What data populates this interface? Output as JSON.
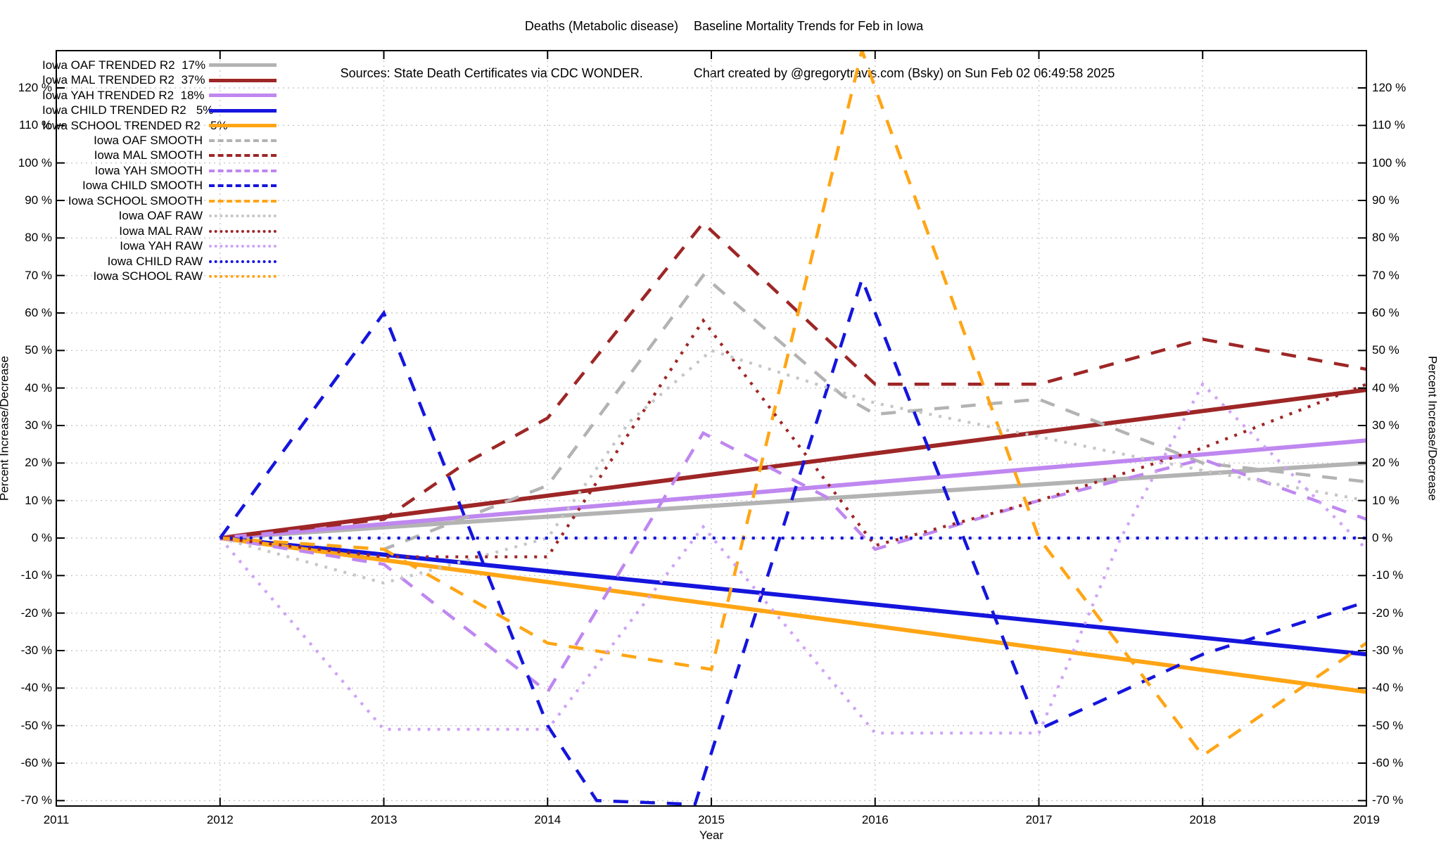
{
  "title": {
    "main_left": "Deaths (Metabolic disease)",
    "main_right": "Baseline Mortality Trends for Feb in Iowa",
    "sources": "Sources: State Death Certificates via CDC WONDER.",
    "credit": "Chart created by @gregorytravis.com (Bsky) on Sun Feb 02 06:49:58 2025"
  },
  "axes": {
    "xlabel": "Year",
    "ylabel_left": "Percent Increase/Decrease",
    "ylabel_right": "Percent Increase/Decrease",
    "ytick_suffix": " %"
  },
  "chart_data": {
    "type": "line",
    "title": "Deaths (Metabolic disease)  Baseline Mortality Trends for Feb in Iowa",
    "xlabel": "Year",
    "ylabel": "Percent Increase/Decrease",
    "xlim": [
      2011,
      2019
    ],
    "ylim": [
      -71.6,
      130
    ],
    "grid": true,
    "legend_position": "top-left",
    "xticks": [
      2011,
      2012,
      2013,
      2014,
      2015,
      2016,
      2017,
      2018,
      2019
    ],
    "yticks": [
      -70,
      -60,
      -50,
      -40,
      -30,
      -20,
      -10,
      0,
      10,
      20,
      30,
      40,
      50,
      60,
      70,
      80,
      90,
      100,
      110,
      120
    ],
    "series": [
      {
        "name": "Iowa OAF TRENDED R2  17%",
        "style": "solid",
        "color": "#b3b3b3",
        "points": [
          [
            2012,
            0
          ],
          [
            2019,
            20
          ]
        ]
      },
      {
        "name": "Iowa MAL TRENDED R2  37%",
        "style": "solid",
        "color": "#9e2626",
        "points": [
          [
            2012,
            0
          ],
          [
            2019,
            39.5
          ]
        ]
      },
      {
        "name": "Iowa YAH TRENDED R2  18%",
        "style": "solid",
        "color": "#bf87f0",
        "points": [
          [
            2012,
            0
          ],
          [
            2019,
            26
          ]
        ]
      },
      {
        "name": "Iowa CHILD TRENDED R2   5%",
        "style": "solid",
        "color": "#1515dd",
        "points": [
          [
            2012,
            0
          ],
          [
            2019,
            -31
          ]
        ]
      },
      {
        "name": "Iowa SCHOOL TRENDED R2   5%",
        "style": "solid",
        "color": "#ffa515",
        "points": [
          [
            2012,
            0
          ],
          [
            2019,
            -41
          ]
        ]
      },
      {
        "name": "Iowa OAF SMOOTH",
        "style": "dashed",
        "color": "#b3b3b3",
        "points": [
          [
            2012,
            0
          ],
          [
            2013,
            -3
          ],
          [
            2014,
            14
          ],
          [
            2014.95,
            70
          ],
          [
            2015.8,
            38
          ],
          [
            2016,
            33
          ],
          [
            2017,
            37
          ],
          [
            2018,
            20
          ],
          [
            2019,
            15
          ]
        ]
      },
      {
        "name": "Iowa MAL SMOOTH",
        "style": "dashed",
        "color": "#9e2626",
        "points": [
          [
            2012,
            0
          ],
          [
            2013,
            5
          ],
          [
            2013.5,
            20
          ],
          [
            2014,
            32
          ],
          [
            2014.95,
            84
          ],
          [
            2016,
            41
          ],
          [
            2017,
            41
          ],
          [
            2018,
            53
          ],
          [
            2019,
            45
          ]
        ]
      },
      {
        "name": "Iowa YAH SMOOTH",
        "style": "dashed",
        "color": "#bf87f0",
        "points": [
          [
            2012,
            0
          ],
          [
            2013,
            -7
          ],
          [
            2014,
            -41
          ],
          [
            2014.95,
            28
          ],
          [
            2015.7,
            11
          ],
          [
            2016,
            -3
          ],
          [
            2017,
            10
          ],
          [
            2018,
            21
          ],
          [
            2019,
            5
          ]
        ]
      },
      {
        "name": "Iowa CHILD SMOOTH",
        "style": "dashed",
        "color": "#1515dd",
        "points": [
          [
            2012,
            0
          ],
          [
            2013,
            60
          ],
          [
            2014,
            -50
          ],
          [
            2014.3,
            -70
          ],
          [
            2014.9,
            -71
          ],
          [
            2015.92,
            69
          ],
          [
            2017,
            -51
          ],
          [
            2018,
            -31
          ],
          [
            2019,
            -17
          ]
        ]
      },
      {
        "name": "Iowa SCHOOL SMOOTH",
        "style": "dashed",
        "color": "#ffa515",
        "points": [
          [
            2012,
            0
          ],
          [
            2013,
            -3
          ],
          [
            2014,
            -28
          ],
          [
            2015,
            -35
          ],
          [
            2015.92,
            130
          ],
          [
            2016,
            120
          ],
          [
            2017,
            0
          ],
          [
            2018,
            -58
          ],
          [
            2019,
            -28
          ]
        ]
      },
      {
        "name": "Iowa OAF RAW",
        "style": "dotted",
        "color": "#c6c6c6",
        "points": [
          [
            2012,
            0
          ],
          [
            2013,
            -12
          ],
          [
            2014,
            0
          ],
          [
            2014.5,
            31
          ],
          [
            2015,
            50
          ],
          [
            2016,
            36
          ],
          [
            2017,
            27
          ],
          [
            2018,
            18
          ],
          [
            2019,
            10
          ]
        ]
      },
      {
        "name": "Iowa MAL RAW",
        "style": "dotted",
        "color": "#9e2626",
        "points": [
          [
            2012,
            0
          ],
          [
            2013,
            -5
          ],
          [
            2014,
            -5
          ],
          [
            2014.95,
            58
          ],
          [
            2016,
            -2
          ],
          [
            2017,
            10
          ],
          [
            2018,
            24
          ],
          [
            2019,
            41
          ]
        ]
      },
      {
        "name": "Iowa YAH RAW",
        "style": "dotted",
        "color": "#cfa3f7",
        "points": [
          [
            2012,
            0
          ],
          [
            2013,
            -51
          ],
          [
            2014,
            -51
          ],
          [
            2014.95,
            3
          ],
          [
            2016,
            -52
          ],
          [
            2017,
            -52
          ],
          [
            2017.5,
            0
          ],
          [
            2018,
            41
          ],
          [
            2019,
            -3
          ]
        ]
      },
      {
        "name": "Iowa CHILD RAW",
        "style": "dotted",
        "color": "#1515dd",
        "points": [
          [
            2012,
            0
          ],
          [
            2019,
            0
          ]
        ]
      },
      {
        "name": "Iowa SCHOOL RAW",
        "style": "dotted",
        "color": "#ffa515",
        "points": []
      }
    ]
  },
  "layout_colors": {
    "background": "#ffffff",
    "grid": "#c9c9c9",
    "border": "#000000",
    "text": "#000000"
  }
}
